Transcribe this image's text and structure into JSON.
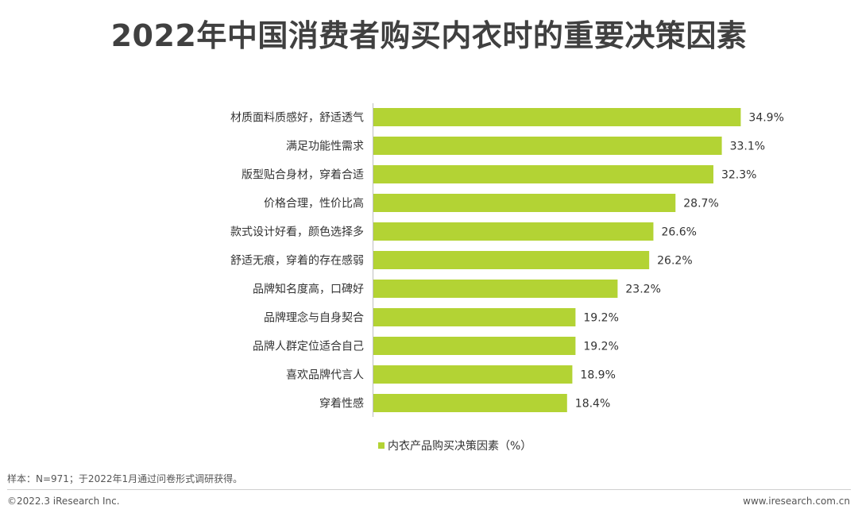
{
  "title": "2022年中国消费者购买内衣时的重要决策因素",
  "legend": {
    "label": "内衣产品购买决策因素（%）"
  },
  "footer": {
    "sample": "样本：N=971；于2022年1月通过问卷形式调研获得。",
    "copyright": "©2022.3 iResearch Inc.",
    "website": "www.iresearch.com.cn"
  },
  "colors": {
    "bar": "#b3d334"
  },
  "chart_data": {
    "type": "bar",
    "orientation": "horizontal",
    "categories": [
      "材质面料质感好，舒适透气",
      "满足功能性需求",
      "版型贴合身材，穿着合适",
      "价格合理，性价比高",
      "款式设计好看，颜色选择多",
      "舒适无痕，穿着的存在感弱",
      "品牌知名度高，口碑好",
      "品牌理念与自身契合",
      "品牌人群定位适合自己",
      "喜欢品牌代言人",
      "穿着性感"
    ],
    "values": [
      34.9,
      33.1,
      32.3,
      28.7,
      26.6,
      26.2,
      23.2,
      19.2,
      19.2,
      18.9,
      18.4
    ],
    "value_labels": [
      "34.9%",
      "33.1%",
      "32.3%",
      "28.7%",
      "26.6%",
      "26.2%",
      "23.2%",
      "19.2%",
      "19.2%",
      "18.9%",
      "18.4%"
    ],
    "series": [
      {
        "name": "内衣产品购买决策因素（%）",
        "values": [
          34.9,
          33.1,
          32.3,
          28.7,
          26.6,
          26.2,
          23.2,
          19.2,
          19.2,
          18.9,
          18.4
        ]
      }
    ],
    "legend_position": "bottom",
    "grid": false
  }
}
